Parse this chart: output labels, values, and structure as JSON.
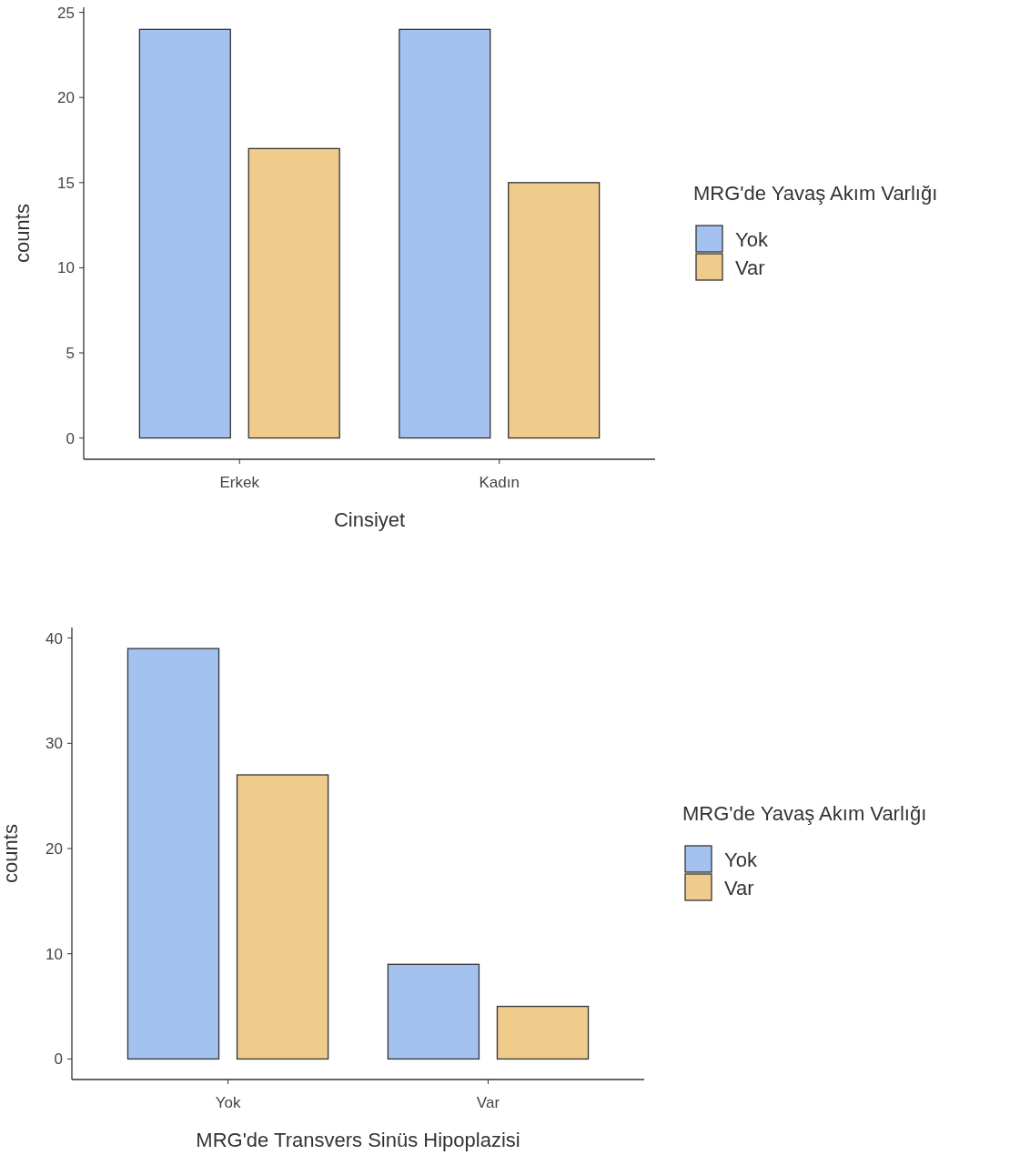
{
  "chart_data": [
    {
      "type": "bar",
      "xlabel": "Cinsiyet",
      "ylabel": "counts",
      "legend_title": "MRG'de Yavaş Akım Varlığı",
      "legend": "right",
      "categories": [
        "Erkek",
        "Kadın"
      ],
      "series": [
        {
          "name": "Yok",
          "color": "#a4c2f0",
          "values": [
            24,
            24
          ]
        },
        {
          "name": "Var",
          "color": "#efcc8c",
          "values": [
            17,
            15
          ]
        }
      ],
      "ylim": [
        -1.25,
        25.3
      ],
      "yticks": [
        0,
        5,
        10,
        15,
        20,
        25
      ]
    },
    {
      "type": "bar",
      "xlabel": "MRG'de Transvers Sinüs Hipoplazisi",
      "ylabel": "counts",
      "legend_title": "MRG'de Yavaş Akım Varlığı",
      "legend": "right",
      "categories": [
        "Yok",
        "Var"
      ],
      "series": [
        {
          "name": "Yok",
          "color": "#a4c2f0",
          "values": [
            39,
            9
          ]
        },
        {
          "name": "Var",
          "color": "#efcc8c",
          "values": [
            27,
            5
          ]
        }
      ],
      "ylim": [
        -1.95,
        41
      ],
      "yticks": [
        0,
        10,
        20,
        30,
        40
      ]
    }
  ]
}
